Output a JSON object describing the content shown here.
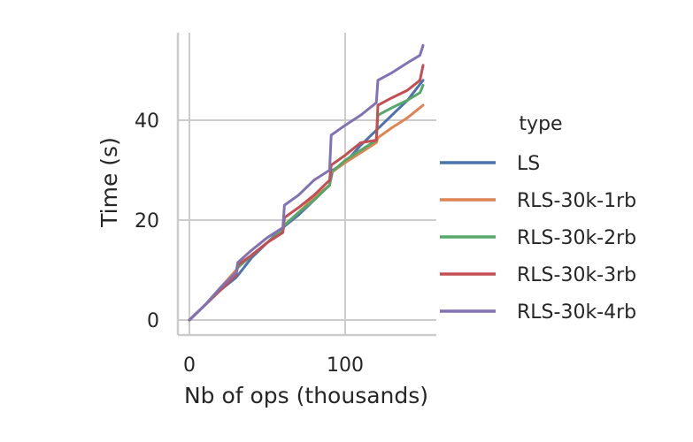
{
  "chart_data": {
    "type": "line",
    "xlabel": "Nb of ops (thousands)",
    "ylabel": "Time (s)",
    "xlim": [
      -8,
      158
    ],
    "ylim": [
      -3,
      58
    ],
    "xticks": [
      0,
      100
    ],
    "yticks": [
      0,
      20,
      40
    ],
    "grid": true,
    "legend": {
      "title": "type",
      "placement": "right"
    },
    "series": [
      {
        "name": "LS",
        "color": "#4c72b0",
        "points": [
          [
            0,
            0
          ],
          [
            10,
            3
          ],
          [
            20,
            6
          ],
          [
            30,
            8.5
          ],
          [
            40,
            12.5
          ],
          [
            50,
            15.5
          ],
          [
            60,
            18.5
          ],
          [
            70,
            21
          ],
          [
            80,
            24
          ],
          [
            90,
            27
          ],
          [
            92,
            30
          ],
          [
            100,
            31.5
          ],
          [
            110,
            35
          ],
          [
            120,
            38
          ],
          [
            130,
            41
          ],
          [
            140,
            44
          ],
          [
            150,
            48
          ]
        ]
      },
      {
        "name": "RLS-30k-1rb",
        "color": "#dd8452",
        "points": [
          [
            0,
            0
          ],
          [
            10,
            3
          ],
          [
            20,
            6.5
          ],
          [
            30,
            10
          ],
          [
            31,
            10.5
          ],
          [
            40,
            13
          ],
          [
            50,
            15.5
          ],
          [
            60,
            18
          ],
          [
            61,
            19
          ],
          [
            70,
            21.5
          ],
          [
            80,
            24.5
          ],
          [
            90,
            27
          ],
          [
            91,
            29.5
          ],
          [
            100,
            31.5
          ],
          [
            110,
            33.5
          ],
          [
            120,
            35.5
          ],
          [
            121,
            36.5
          ],
          [
            130,
            38.5
          ],
          [
            140,
            40.5
          ],
          [
            150,
            43
          ]
        ]
      },
      {
        "name": "RLS-30k-2rb",
        "color": "#55a868",
        "points": [
          [
            0,
            0
          ],
          [
            10,
            3
          ],
          [
            20,
            6
          ],
          [
            30,
            9.5
          ],
          [
            31,
            10.5
          ],
          [
            40,
            13
          ],
          [
            50,
            15.5
          ],
          [
            60,
            18
          ],
          [
            61,
            19
          ],
          [
            70,
            21.5
          ],
          [
            80,
            24
          ],
          [
            90,
            27
          ],
          [
            91,
            29.5
          ],
          [
            100,
            32
          ],
          [
            110,
            34
          ],
          [
            120,
            36
          ],
          [
            121,
            41
          ],
          [
            130,
            42.5
          ],
          [
            140,
            44
          ],
          [
            148,
            45.5
          ],
          [
            150,
            47
          ]
        ]
      },
      {
        "name": "RLS-30k-3rb",
        "color": "#c44e52",
        "points": [
          [
            0,
            0
          ],
          [
            10,
            3
          ],
          [
            20,
            6
          ],
          [
            30,
            9
          ],
          [
            31,
            11
          ],
          [
            40,
            13
          ],
          [
            50,
            15.5
          ],
          [
            60,
            17.5
          ],
          [
            61,
            20.5
          ],
          [
            70,
            22.5
          ],
          [
            80,
            25
          ],
          [
            90,
            28
          ],
          [
            91,
            31
          ],
          [
            100,
            33
          ],
          [
            110,
            35.5
          ],
          [
            120,
            36
          ],
          [
            121,
            43
          ],
          [
            130,
            44.5
          ],
          [
            140,
            46
          ],
          [
            148,
            48
          ],
          [
            150,
            51
          ]
        ]
      },
      {
        "name": "RLS-30k-4rb",
        "color": "#8172b3",
        "points": [
          [
            0,
            0
          ],
          [
            10,
            3
          ],
          [
            20,
            6.5
          ],
          [
            30,
            9.5
          ],
          [
            31,
            11.5
          ],
          [
            40,
            14
          ],
          [
            50,
            16.5
          ],
          [
            60,
            18.5
          ],
          [
            61,
            23
          ],
          [
            70,
            25
          ],
          [
            80,
            28
          ],
          [
            90,
            30
          ],
          [
            91,
            37
          ],
          [
            100,
            39
          ],
          [
            110,
            41
          ],
          [
            120,
            43.5
          ],
          [
            121,
            48
          ],
          [
            130,
            49.5
          ],
          [
            140,
            51.5
          ],
          [
            148,
            53
          ],
          [
            150,
            55
          ]
        ]
      }
    ]
  }
}
